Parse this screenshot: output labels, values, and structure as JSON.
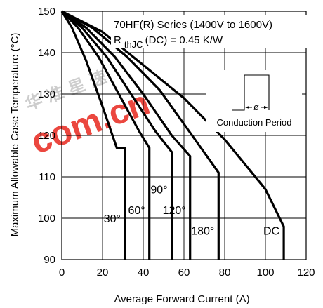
{
  "chart_data": {
    "type": "line",
    "title": "70HF(R) Series (1400V to 1600V)",
    "subtitle_prefix": "R",
    "subtitle_sub": "thJC",
    "subtitle_suffix": "(DC) = 0.45 K/W",
    "xlabel": "Average Forward Current (A)",
    "ylabel": "Maximum Allowable Case Temperature (°C)",
    "xlim": [
      0,
      120
    ],
    "ylim": [
      90,
      150
    ],
    "xticks": [
      0,
      20,
      40,
      60,
      80,
      100,
      120
    ],
    "yticks": [
      90,
      100,
      110,
      120,
      130,
      140,
      150
    ],
    "grid": true,
    "inset_label": "Conduction Period",
    "inset_symbol": "ø",
    "watermark_text": "com.cn",
    "watermark_cjk": "华 准 星 速",
    "series": [
      {
        "name": "30°",
        "x": [
          0,
          5,
          12,
          20,
          27,
          31,
          31
        ],
        "y": [
          150,
          146,
          138,
          127,
          117,
          117,
          90
        ]
      },
      {
        "name": "60°",
        "x": [
          0,
          8,
          18,
          28,
          38,
          43,
          43
        ],
        "y": [
          150,
          146,
          139,
          130,
          121,
          117,
          90
        ]
      },
      {
        "name": "90°",
        "x": [
          0,
          10,
          22,
          34,
          46,
          54,
          54
        ],
        "y": [
          150,
          146,
          139,
          130,
          121,
          116,
          90
        ]
      },
      {
        "name": "120°",
        "x": [
          0,
          12,
          26,
          40,
          54,
          63,
          63
        ],
        "y": [
          150,
          146,
          139,
          130,
          120,
          115,
          90
        ]
      },
      {
        "name": "180°",
        "x": [
          0,
          15,
          32,
          48,
          64,
          77,
          77
        ],
        "y": [
          150,
          146,
          139,
          131,
          120,
          111,
          90
        ]
      },
      {
        "name": "DC",
        "x": [
          0,
          20,
          40,
          60,
          80,
          100,
          109,
          109
        ],
        "y": [
          150,
          145,
          137,
          129,
          119,
          107,
          98,
          90
        ]
      }
    ]
  }
}
